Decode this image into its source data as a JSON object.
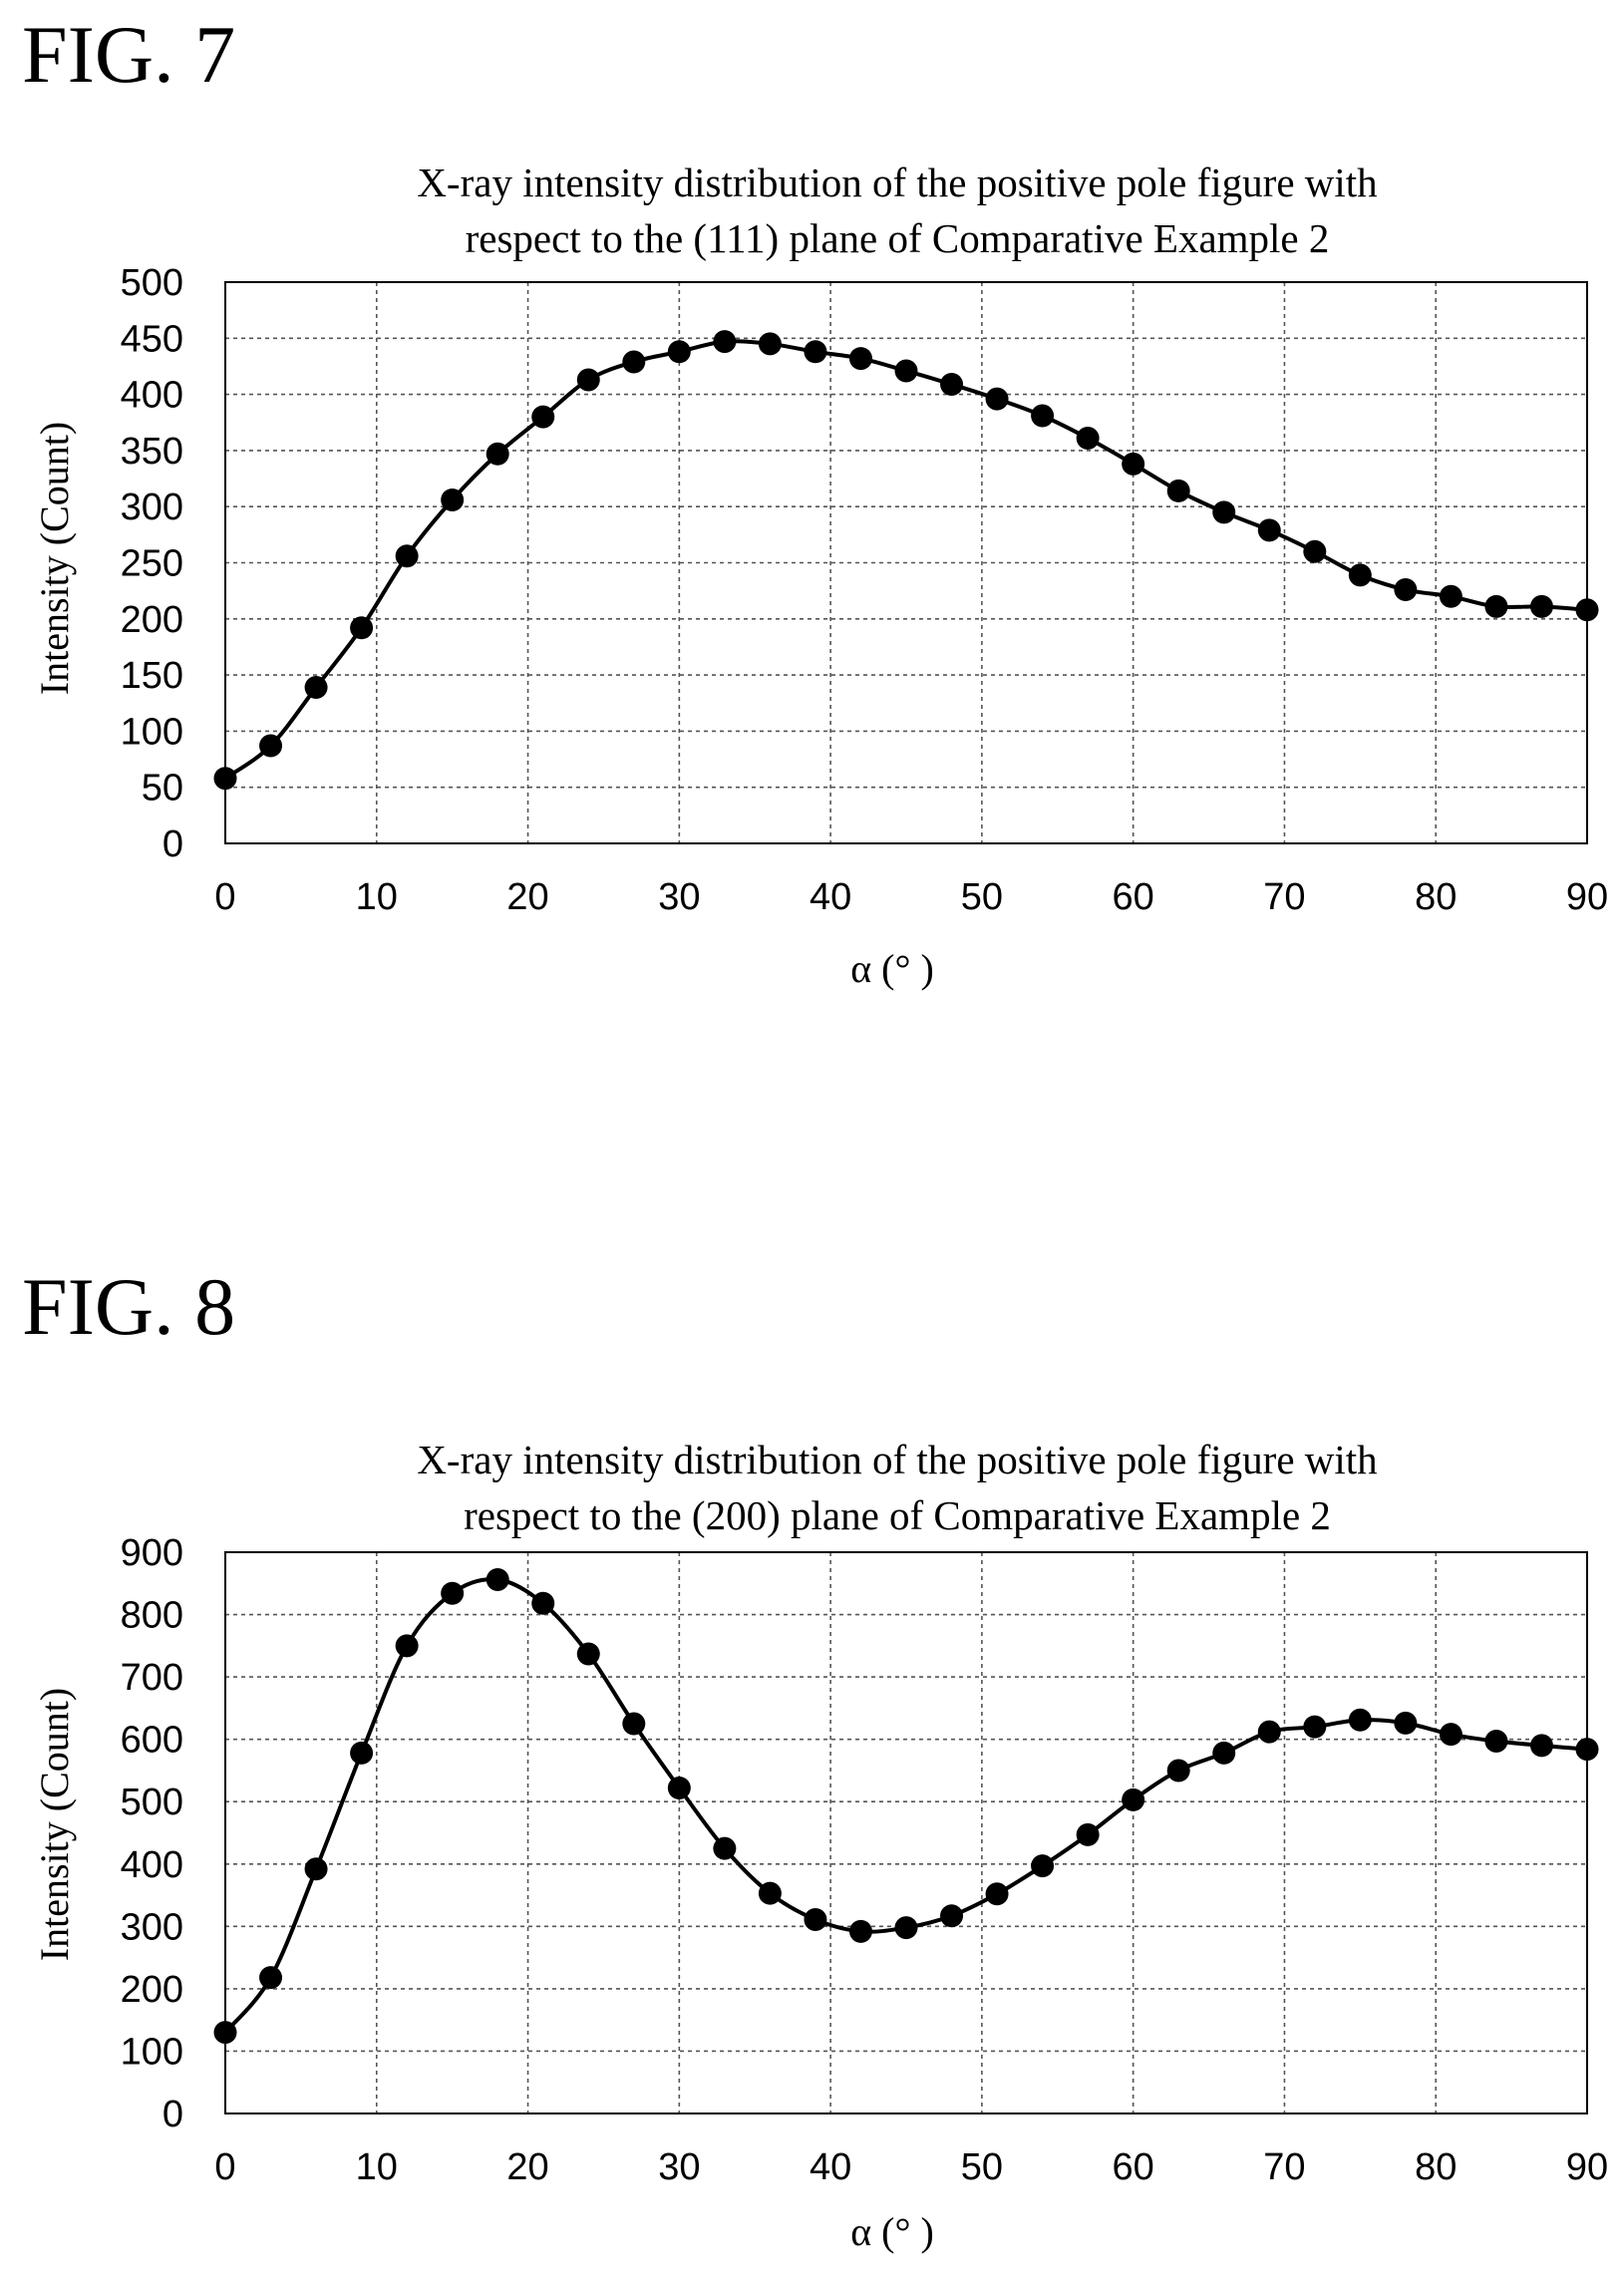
{
  "figures": [
    {
      "label": "FIG. 7"
    },
    {
      "label": "FIG. 8"
    }
  ],
  "chart_data": [
    {
      "type": "line",
      "title": [
        "X-ray intensity distribution of the positive pole figure with",
        "respect to the (111) plane of Comparative Example 2"
      ],
      "xlabel": "α (° )",
      "ylabel": "Intensity (Count)",
      "xlim": [
        0,
        90
      ],
      "ylim": [
        0,
        500
      ],
      "xticks": [
        0,
        10,
        20,
        30,
        40,
        50,
        60,
        70,
        80,
        90
      ],
      "yticks": [
        0,
        50,
        100,
        150,
        200,
        250,
        300,
        350,
        400,
        450,
        500
      ],
      "grid": true,
      "markers": true,
      "series": [
        {
          "x": [
            0,
            3,
            6,
            9,
            12,
            15,
            18,
            21,
            24,
            27,
            30,
            33,
            36,
            39,
            42,
            45,
            48,
            51,
            54,
            57,
            60,
            63,
            66,
            69,
            72,
            75,
            78,
            81,
            84,
            87,
            90
          ],
          "values": [
            58,
            87,
            139,
            192,
            256,
            306,
            347,
            380,
            413,
            429,
            438,
            447,
            445,
            438,
            432,
            421,
            409,
            396,
            381,
            361,
            338,
            314,
            295,
            279,
            260,
            239,
            226,
            220,
            211,
            211,
            208
          ]
        }
      ]
    },
    {
      "type": "line",
      "title": [
        "X-ray intensity distribution of the positive pole figure with",
        "respect to the (200) plane of Comparative Example 2"
      ],
      "xlabel": "α (° )",
      "ylabel": "Intensity (Count)",
      "xlim": [
        0,
        90
      ],
      "ylim": [
        0,
        900
      ],
      "xticks": [
        0,
        10,
        20,
        30,
        40,
        50,
        60,
        70,
        80,
        90
      ],
      "yticks": [
        0,
        100,
        200,
        300,
        400,
        500,
        600,
        700,
        800,
        900
      ],
      "grid": true,
      "markers": true,
      "series": [
        {
          "x": [
            0,
            3,
            6,
            9,
            12,
            15,
            18,
            21,
            24,
            27,
            30,
            33,
            36,
            39,
            42,
            45,
            48,
            51,
            54,
            57,
            60,
            63,
            66,
            69,
            72,
            75,
            78,
            81,
            84,
            87,
            90
          ],
          "values": [
            130,
            218,
            392,
            578,
            750,
            834,
            856,
            818,
            737,
            625,
            522,
            425,
            353,
            311,
            292,
            298,
            317,
            352,
            397,
            447,
            503,
            550,
            578,
            612,
            620,
            631,
            626,
            608,
            597,
            590,
            584
          ]
        }
      ]
    }
  ]
}
